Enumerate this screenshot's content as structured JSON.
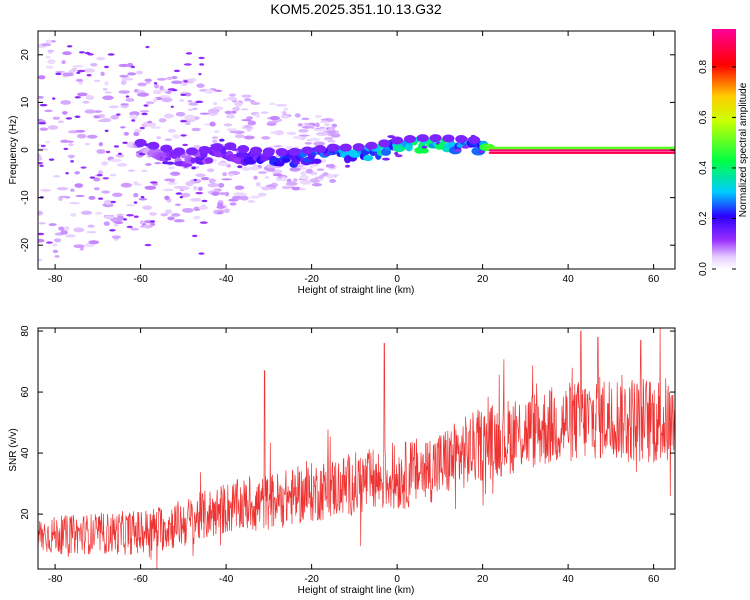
{
  "figure": {
    "title": "KOM5.2025.351.10.13.G32"
  },
  "chart_data": [
    {
      "type": "heatmap",
      "title": "KOM5.2025.351.10.13.G32",
      "xlabel": "Height of straight line (km)",
      "ylabel": "Frequency (Hz)",
      "xlim": [
        -84,
        65
      ],
      "ylim": [
        -25,
        25
      ],
      "xticks": [
        -80,
        -60,
        -40,
        -20,
        0,
        20,
        40,
        60
      ],
      "yticks": [
        -20,
        -10,
        0,
        10,
        20
      ],
      "colorbar": {
        "label": "Normalized spectral amplitude",
        "range": [
          0.0,
          0.95
        ],
        "ticks": [
          0.0,
          0.2,
          0.4,
          0.6,
          0.8
        ],
        "tick_labels": [
          "0.0",
          "0.2",
          "0.4",
          "0.6",
          "0.8"
        ],
        "colormap": [
          "#ffffff",
          "#d8b4ff",
          "#8a2be2",
          "#1a00ff",
          "#00ccff",
          "#00ff66",
          "#ffff00",
          "#ff0000",
          "#ff00aa"
        ]
      },
      "ridge": {
        "description": "dominant frequency trace",
        "points": [
          {
            "x": -60,
            "f": 0.0,
            "amp": 0.08
          },
          {
            "x": -55,
            "f": -1.0,
            "amp": 0.12
          },
          {
            "x": -50,
            "f": -2.0,
            "amp": 0.14
          },
          {
            "x": -45,
            "f": -1.5,
            "amp": 0.15
          },
          {
            "x": -40,
            "f": -0.5,
            "amp": 0.16
          },
          {
            "x": -35,
            "f": -1.5,
            "amp": 0.2
          },
          {
            "x": -30,
            "f": -1.8,
            "amp": 0.22
          },
          {
            "x": -25,
            "f": -2.0,
            "amp": 0.24
          },
          {
            "x": -20,
            "f": -1.5,
            "amp": 0.26
          },
          {
            "x": -15,
            "f": -1.0,
            "amp": 0.28
          },
          {
            "x": -10,
            "f": -1.0,
            "amp": 0.3
          },
          {
            "x": -5,
            "f": -0.5,
            "amp": 0.33
          },
          {
            "x": 0,
            "f": 0.5,
            "amp": 0.35
          },
          {
            "x": 5,
            "f": 1.0,
            "amp": 0.4
          },
          {
            "x": 10,
            "f": 1.0,
            "amp": 0.38
          },
          {
            "x": 15,
            "f": 0.8,
            "amp": 0.36
          },
          {
            "x": 20,
            "f": 0.5,
            "amp": 0.34
          },
          {
            "x": 22,
            "f": 0.0,
            "amp": 0.9
          },
          {
            "x": 65,
            "f": 0.0,
            "amp": 0.9
          }
        ]
      }
    },
    {
      "type": "line",
      "xlabel": "Height of straight line (km)",
      "ylabel": "SNR (v/v)",
      "xlim": [
        -84,
        65
      ],
      "ylim": [
        2,
        81
      ],
      "xticks": [
        -80,
        -60,
        -40,
        -20,
        0,
        20,
        40,
        60
      ],
      "yticks": [
        20,
        40,
        60,
        80
      ],
      "series": [
        {
          "name": "SNR",
          "color": "#ee3333",
          "trend": [
            {
              "x": -84,
              "y": 13
            },
            {
              "x": -60,
              "y": 14
            },
            {
              "x": -50,
              "y": 17
            },
            {
              "x": -40,
              "y": 22
            },
            {
              "x": -30,
              "y": 24
            },
            {
              "x": -20,
              "y": 27
            },
            {
              "x": -10,
              "y": 30
            },
            {
              "x": 0,
              "y": 32
            },
            {
              "x": 10,
              "y": 36
            },
            {
              "x": 20,
              "y": 43
            },
            {
              "x": 30,
              "y": 47
            },
            {
              "x": 40,
              "y": 50
            },
            {
              "x": 50,
              "y": 52
            },
            {
              "x": 65,
              "y": 50
            }
          ],
          "spikes": [
            {
              "x": -31,
              "y": 67
            },
            {
              "x": -3,
              "y": 76
            },
            {
              "x": 43,
              "y": 80
            },
            {
              "x": 47,
              "y": 78
            },
            {
              "x": 57,
              "y": 77
            }
          ]
        }
      ]
    }
  ]
}
